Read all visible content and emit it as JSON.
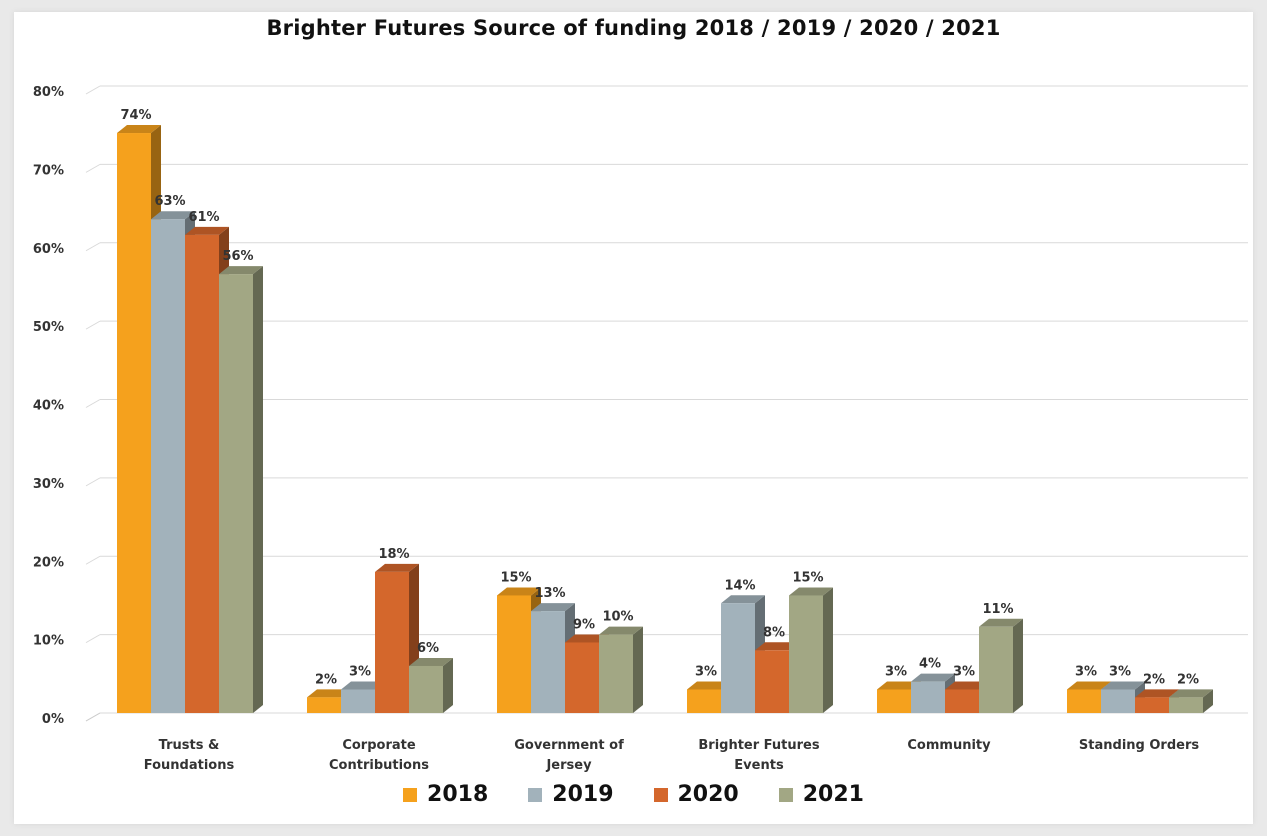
{
  "chart_data": {
    "type": "bar",
    "title": "Brighter Futures Source of funding 2018 / 2019 / 2020 / 2021",
    "xlabel": "",
    "ylabel": "",
    "ylim": [
      0,
      80
    ],
    "y_ticks": [
      "0%",
      "10%",
      "20%",
      "30%",
      "40%",
      "50%",
      "60%",
      "70%",
      "80%"
    ],
    "grid": true,
    "legend_position": "bottom",
    "categories": [
      [
        "Trusts &",
        "Foundations"
      ],
      [
        "Corporate",
        "Contributions"
      ],
      [
        "Government of",
        "Jersey"
      ],
      [
        "Brighter Futures",
        "Events"
      ],
      [
        "Community"
      ],
      [
        "Standing Orders"
      ]
    ],
    "series": [
      {
        "name": "2018",
        "color": "#f5a11d",
        "values": [
          74,
          2,
          15,
          3,
          3,
          3
        ],
        "labels": [
          "74%",
          "2%",
          "15%",
          "3%",
          "3%",
          "3%"
        ]
      },
      {
        "name": "2019",
        "color": "#a2b2bb",
        "values": [
          63,
          3,
          13,
          14,
          4,
          3
        ],
        "labels": [
          "63%",
          "3%",
          "13%",
          "14%",
          "4%",
          "3%"
        ]
      },
      {
        "name": "2020",
        "color": "#d4672c",
        "values": [
          61,
          18,
          9,
          8,
          3,
          2
        ],
        "labels": [
          "61%",
          "18%",
          "9%",
          "8%",
          "3%",
          "2%"
        ]
      },
      {
        "name": "2021",
        "color": "#a2a784",
        "values": [
          56,
          6,
          10,
          15,
          11,
          2
        ],
        "labels": [
          "56%",
          "6%",
          "10%",
          "15%",
          "11%",
          "2%"
        ]
      }
    ]
  }
}
